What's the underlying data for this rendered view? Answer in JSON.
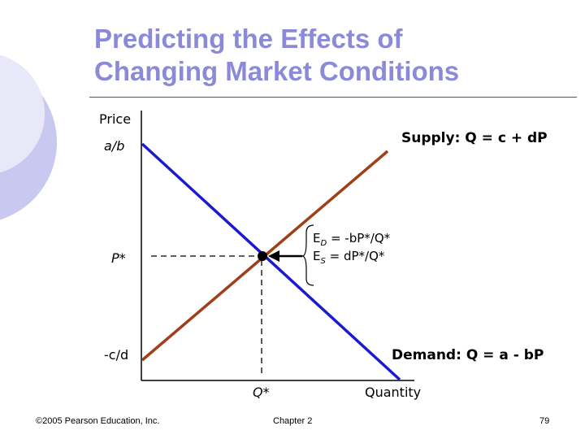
{
  "slide": {
    "title_line1": "Predicting the Effects of",
    "title_line2": "Changing Market Conditions"
  },
  "diagram": {
    "y_axis_label": "Price",
    "x_axis_label": "Quantity",
    "y_intercept_demand": "a/b",
    "equilibrium_price": "P*",
    "y_intercept_supply": "-c/d",
    "equilibrium_quantity": "Q*",
    "supply_curve_label": "Supply: Q = c + dP",
    "demand_curve_label": "Demand: Q = a - bP",
    "elasticity_demand": {
      "prefix": "E",
      "sub": "D",
      "rest": " = -bP*/Q*"
    },
    "elasticity_supply": {
      "prefix": "E",
      "sub": "S",
      "rest": " = dP*/Q*"
    },
    "colors": {
      "demand": "#1a1ad0",
      "supply": "#a0401a",
      "title": "#8a8ad8",
      "deco_circle": "#c8c8f0"
    }
  },
  "footer": {
    "copyright": "©2005 Pearson Education, Inc.",
    "chapter": "Chapter 2",
    "page": "79"
  }
}
